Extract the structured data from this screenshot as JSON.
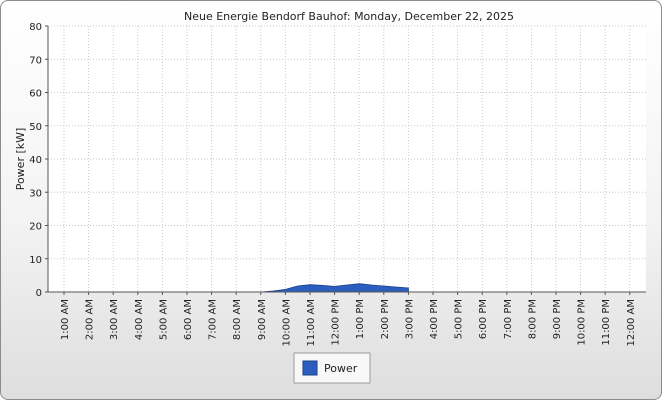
{
  "chart_data": {
    "type": "area",
    "title": "Neue Energie Bendorf Bauhof: Monday, December 22, 2025",
    "ylabel": "Power [kW]",
    "xlabel": "",
    "ylim": [
      0,
      80
    ],
    "yticks": [
      0,
      10,
      20,
      30,
      40,
      50,
      60,
      70,
      80
    ],
    "categories": [
      "1:00 AM",
      "2:00 AM",
      "3:00 AM",
      "4:00 AM",
      "5:00 AM",
      "6:00 AM",
      "7:00 AM",
      "8:00 AM",
      "9:00 AM",
      "10:00 AM",
      "11:00 AM",
      "12:00 PM",
      "1:00 PM",
      "2:00 PM",
      "3:00 PM",
      "4:00 PM",
      "5:00 PM",
      "6:00 PM",
      "7:00 PM",
      "8:00 PM",
      "9:00 PM",
      "10:00 PM",
      "11:00 PM",
      "12:00 AM"
    ],
    "grid": true,
    "legend_position": "bottom-center",
    "series": [
      {
        "name": "Power",
        "color": "#2a5fbf",
        "x": [
          9.0,
          9.5,
          10.0,
          10.5,
          11.0,
          11.5,
          12.0,
          12.5,
          13.0,
          13.5,
          14.0,
          14.5,
          15.0
        ],
        "values": [
          0,
          0.3,
          0.8,
          1.8,
          2.2,
          2.0,
          1.7,
          2.1,
          2.5,
          2.1,
          1.8,
          1.5,
          1.2
        ]
      }
    ]
  }
}
